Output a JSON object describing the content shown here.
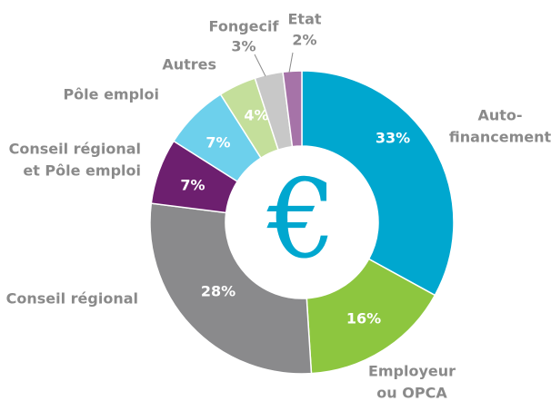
{
  "chart_data": {
    "type": "donut",
    "categories": [
      [
        "Auto-",
        "financement"
      ],
      [
        "Employeur",
        "ou OPCA"
      ],
      [
        "Conseil régional"
      ],
      [
        "Conseil régional",
        "et Pôle emploi"
      ],
      [
        "Pôle emploi"
      ],
      [
        "Autres"
      ],
      [
        "Fongecif"
      ],
      [
        "Etat"
      ]
    ],
    "values": [
      33,
      16,
      28,
      7,
      7,
      4,
      3,
      2
    ],
    "value_labels": [
      "33%",
      "16%",
      "28%",
      "7%",
      "7%",
      "4%",
      "3%",
      "2%"
    ],
    "colors": [
      "#00a7cf",
      "#8dc63f",
      "#8a8a8c",
      "#6d1f6f",
      "#6dd0ec",
      "#c4df9b",
      "#c8c8c8",
      "#a673a8"
    ],
    "center_label": "€"
  }
}
